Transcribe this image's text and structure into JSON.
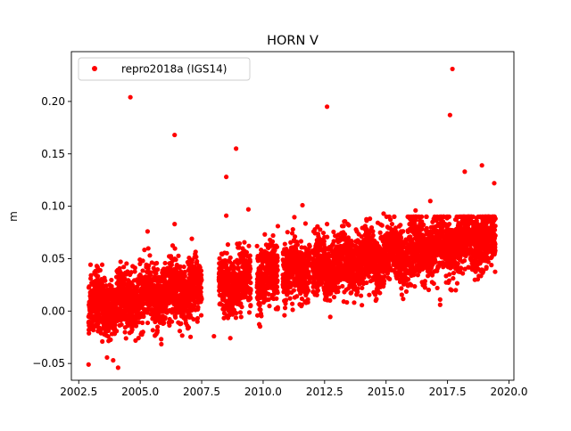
{
  "chart_data": {
    "type": "scatter",
    "title": "HORN V",
    "xlabel": "",
    "ylabel": "m",
    "xlim": [
      2002.2,
      2020.2
    ],
    "ylim": [
      -0.066,
      0.2475
    ],
    "xticks": [
      2002.5,
      2005.0,
      2007.5,
      2010.0,
      2012.5,
      2015.0,
      2017.5,
      2020.0
    ],
    "xtick_labels": [
      "2002.5",
      "2005.0",
      "2007.5",
      "2010.0",
      "2012.5",
      "2015.0",
      "2017.5",
      "2020.0"
    ],
    "yticks": [
      -0.05,
      0.0,
      0.05,
      0.1,
      0.15,
      0.2
    ],
    "ytick_labels": [
      "−0.05",
      "0.00",
      "0.05",
      "0.10",
      "0.15",
      "0.20"
    ],
    "grid": false,
    "legend_position": "top-left",
    "marker_color": "#ff0000",
    "series": [
      {
        "name": "repro2018a (IGS14)",
        "color": "#ff0000",
        "trend": {
          "x": [
            2002.9,
            2019.45
          ],
          "y": [
            0.003,
            0.071
          ]
        },
        "scatter_sd": 0.014,
        "x_ranges": [
          [
            2002.9,
            2007.5
          ],
          [
            2008.2,
            2009.5
          ],
          [
            2009.75,
            2010.6
          ],
          [
            2010.8,
            2011.9
          ],
          [
            2012.0,
            2019.45
          ]
        ],
        "outliers": [
          {
            "x": 2004.6,
            "y": 0.204
          },
          {
            "x": 2006.4,
            "y": 0.168
          },
          {
            "x": 2008.9,
            "y": 0.155
          },
          {
            "x": 2008.5,
            "y": 0.128
          },
          {
            "x": 2012.6,
            "y": 0.195
          },
          {
            "x": 2017.7,
            "y": 0.231
          },
          {
            "x": 2017.6,
            "y": 0.187
          },
          {
            "x": 2018.9,
            "y": 0.139
          },
          {
            "x": 2019.4,
            "y": 0.122
          },
          {
            "x": 2018.2,
            "y": 0.133
          },
          {
            "x": 2009.4,
            "y": 0.097
          },
          {
            "x": 2011.6,
            "y": 0.101
          },
          {
            "x": 2006.4,
            "y": 0.083
          },
          {
            "x": 2005.3,
            "y": 0.076
          },
          {
            "x": 2008.5,
            "y": 0.091
          },
          {
            "x": 2002.9,
            "y": -0.051
          },
          {
            "x": 2003.9,
            "y": -0.047
          },
          {
            "x": 2004.1,
            "y": -0.054
          },
          {
            "x": 2007.1,
            "y": 0.069
          },
          {
            "x": 2012.6,
            "y": 0.083
          },
          {
            "x": 2014.9,
            "y": 0.093
          },
          {
            "x": 2016.2,
            "y": 0.096
          },
          {
            "x": 2016.8,
            "y": 0.105
          },
          {
            "x": 2017.2,
            "y": 0.011
          },
          {
            "x": 2017.2,
            "y": 0.006
          },
          {
            "x": 2008.0,
            "y": -0.024
          }
        ]
      }
    ]
  }
}
